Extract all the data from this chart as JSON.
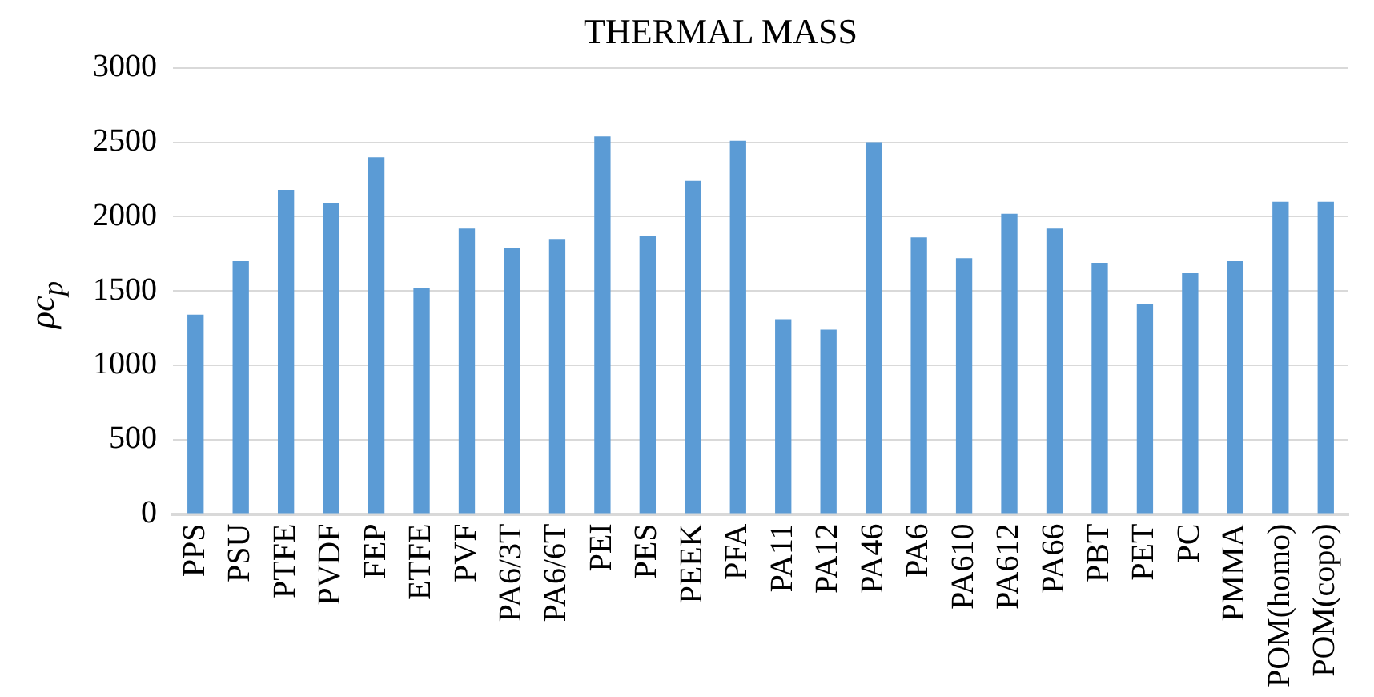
{
  "chart_data": {
    "type": "bar",
    "title": "THERMAL MASS",
    "ylabel": "ρc$_{p}$",
    "categories": [
      "PPS",
      "PSU",
      "PTFE",
      "PVDF",
      "FEP",
      "ETFE",
      "PVF",
      "PA6/3T",
      "PA6/6T",
      "PEI",
      "PES",
      "PEEK",
      "PFA",
      "PA11",
      "PA12",
      "PA46",
      "PA6",
      "PA610",
      "PA612",
      "PA66",
      "PBT",
      "PET",
      "PC",
      "PMMA",
      "POM(homo)",
      "POM(copo)"
    ],
    "values": [
      1340,
      1700,
      2180,
      2090,
      2400,
      1520,
      1920,
      1790,
      1850,
      2540,
      1870,
      2240,
      2510,
      1310,
      1240,
      2500,
      1860,
      1720,
      2020,
      1920,
      1690,
      1410,
      1620,
      1700,
      2100,
      2100
    ],
    "color": "#5b9bd5",
    "ylim": [
      0,
      3000
    ],
    "yticks": [
      0,
      500,
      1000,
      1500,
      2000,
      2500,
      3000
    ],
    "grid": "y"
  }
}
